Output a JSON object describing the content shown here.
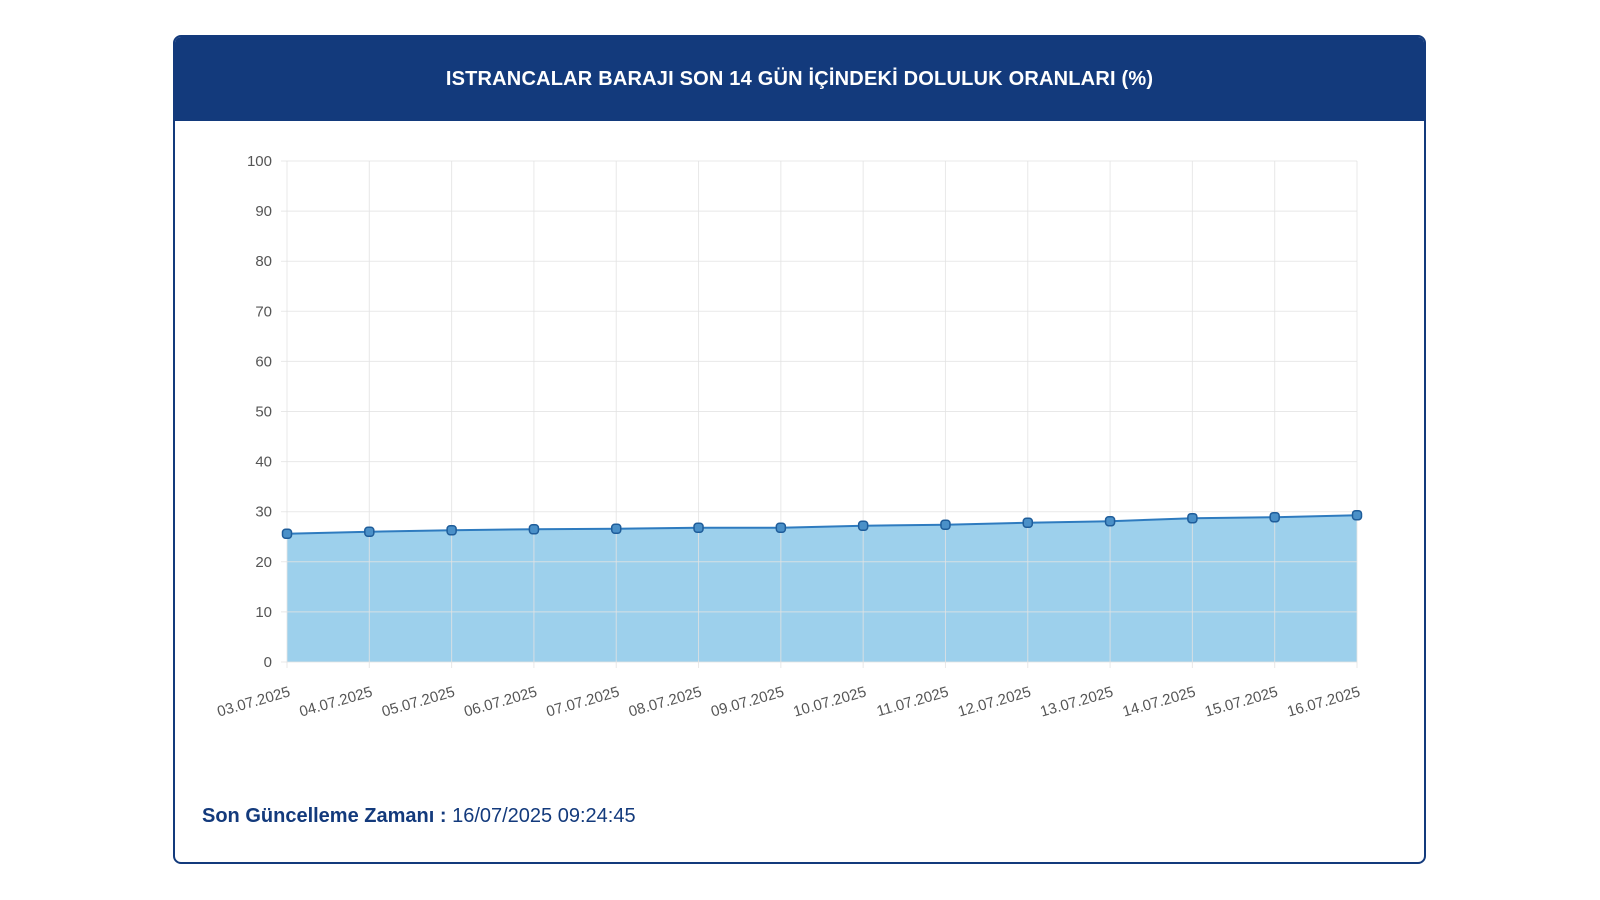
{
  "colors": {
    "header_bg": "#133a7c",
    "header_text": "#ffffff",
    "line": "#2e7bbf",
    "fill": "#9dd0ec",
    "marker_fill": "#4a90c8",
    "marker_stroke": "#1f5d9a",
    "grid": "#e3e3e3",
    "tick_text": "#555555"
  },
  "card": {
    "title": "ISTRANCALAR BARAJI SON 14 GÜN İÇİNDEKİ DOLULUK ORANLARI (%)"
  },
  "footer": {
    "label": "Son Güncelleme Zamanı :",
    "value": " 16/07/2025 09:24:45"
  },
  "chart_data": {
    "type": "area",
    "title": "ISTRANCALAR BARAJI SON 14 GÜN İÇİNDEKİ DOLULUK ORANLARI (%)",
    "xlabel": "",
    "ylabel": "",
    "ylim": [
      0,
      100
    ],
    "yticks": [
      0,
      10,
      20,
      30,
      40,
      50,
      60,
      70,
      80,
      90,
      100
    ],
    "grid": true,
    "legend": "none",
    "categories": [
      "03.07.2025",
      "04.07.2025",
      "05.07.2025",
      "06.07.2025",
      "07.07.2025",
      "08.07.2025",
      "09.07.2025",
      "10.07.2025",
      "11.07.2025",
      "12.07.2025",
      "13.07.2025",
      "14.07.2025",
      "15.07.2025",
      "16.07.2025"
    ],
    "series": [
      {
        "values": [
          25.6,
          26.0,
          26.3,
          26.5,
          26.6,
          26.8,
          26.8,
          27.2,
          27.4,
          27.8,
          28.1,
          28.7,
          28.9,
          29.3
        ]
      }
    ]
  }
}
